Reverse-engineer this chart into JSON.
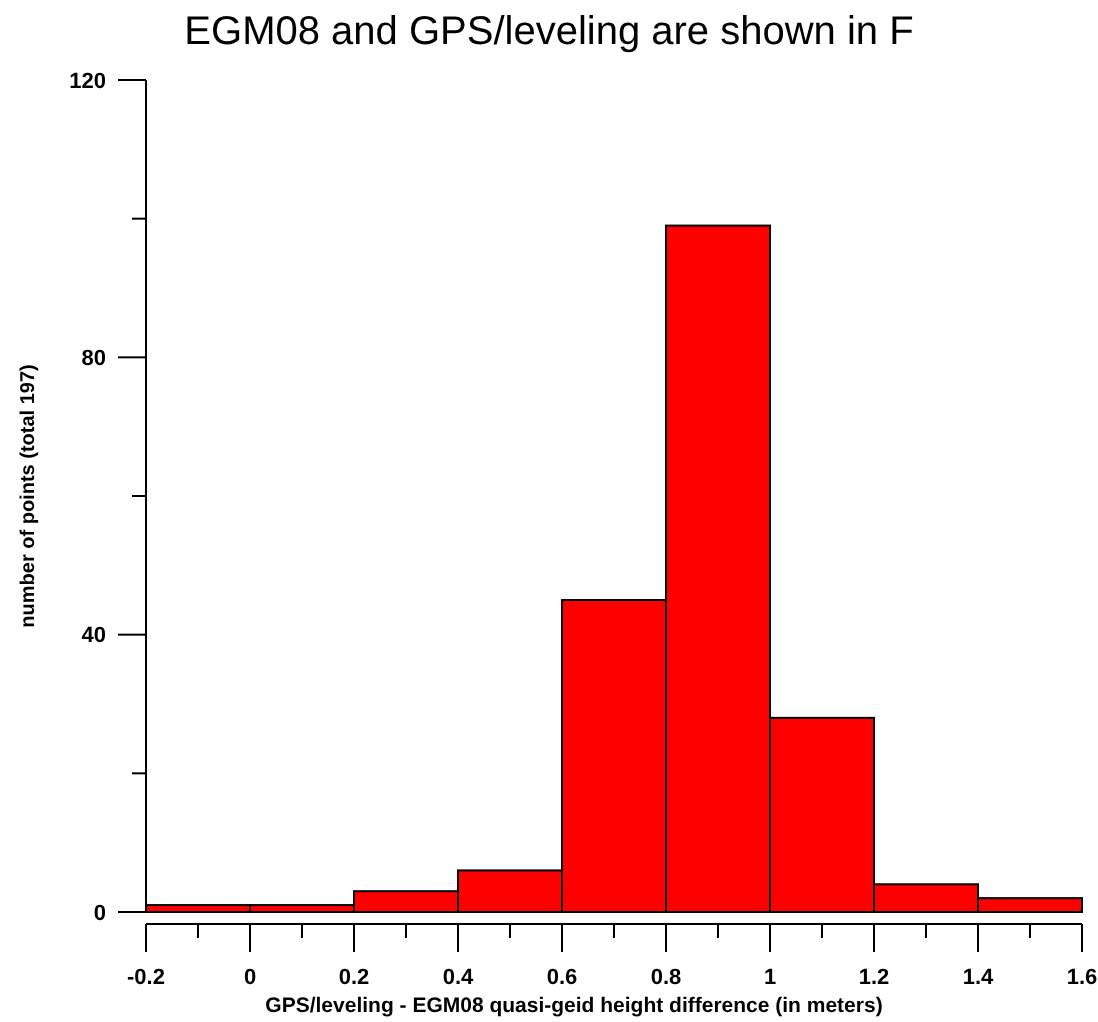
{
  "chart_data": {
    "type": "histogram",
    "title": "EGM08 and GPS/leveling are shown in F",
    "xlabel": "GPS/leveling - EGM08 quasi-geid height difference (in meters)",
    "ylabel": "number of points (total 197)",
    "bins": [
      -0.2,
      0,
      0.2,
      0.4,
      0.6,
      0.8,
      1.0,
      1.2,
      1.4,
      1.6
    ],
    "values": [
      1,
      1,
      3,
      6,
      45,
      99,
      28,
      4,
      2
    ],
    "color": "#ff0000",
    "xlim": [
      -0.2,
      1.6
    ],
    "xticks": [
      -0.2,
      0,
      0.2,
      0.4,
      0.6,
      0.8,
      1,
      1.2,
      1.4,
      1.6,
      {
        "value": -0.1,
        "label": null
      },
      {
        "value": 0.1,
        "label": null
      },
      {
        "value": 0.3,
        "label": null
      },
      {
        "value": 0.5,
        "label": null
      },
      {
        "value": 0.7,
        "label": null
      },
      {
        "value": 0.9,
        "label": null
      },
      {
        "value": 1.1,
        "label": null
      },
      {
        "value": 1.3,
        "label": null
      },
      {
        "value": 1.5,
        "label": null
      }
    ],
    "ylim": [
      0,
      120
    ],
    "yticks": [
      0,
      40,
      80,
      120,
      {
        "value": 20,
        "label": null
      },
      {
        "value": 60,
        "label": null
      },
      {
        "value": 100,
        "label": null
      }
    ],
    "grid": false
  }
}
